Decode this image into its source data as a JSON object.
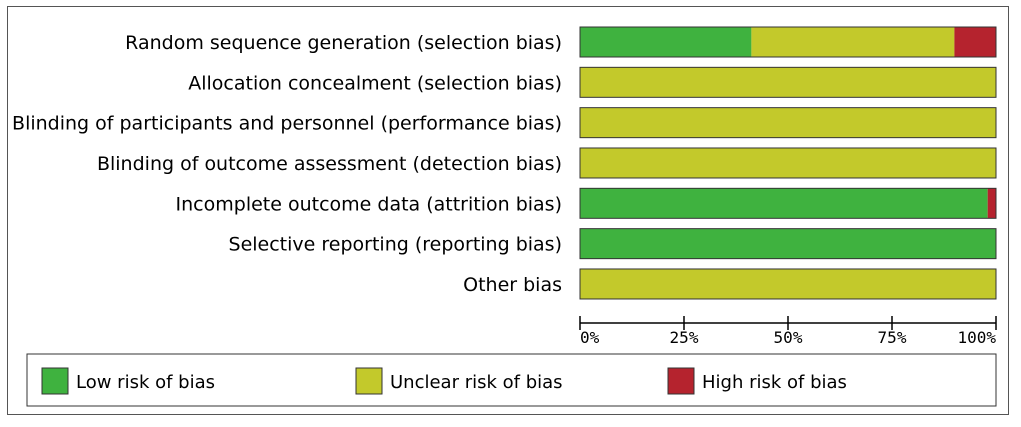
{
  "chart_data": {
    "type": "bar",
    "orientation": "horizontal",
    "stacked": true,
    "percent": true,
    "categories": [
      "Random sequence generation (selection bias)",
      "Allocation concealment (selection bias)",
      "Blinding of participants and personnel (performance bias)",
      "Blinding of outcome assessment (detection bias)",
      "Incomplete outcome data (attrition bias)",
      "Selective reporting (reporting bias)",
      "Other bias"
    ],
    "series": [
      {
        "name": "Low risk of bias",
        "color": "#3fb23f",
        "values": [
          41.2,
          0,
          0,
          0,
          98,
          100,
          0
        ]
      },
      {
        "name": "Unclear risk of bias",
        "color": "#c3c92b",
        "values": [
          48.8,
          100,
          100,
          100,
          0,
          0,
          100
        ]
      },
      {
        "name": "High risk of bias",
        "color": "#b5232e",
        "values": [
          10,
          0,
          0,
          0,
          2,
          0,
          0
        ]
      }
    ],
    "xlim": [
      0,
      100
    ],
    "xticks": [
      0,
      25,
      50,
      75,
      100
    ],
    "xtick_labels": [
      "0%",
      "25%",
      "50%",
      "75%",
      "100%"
    ],
    "grid": false,
    "legend_position": "bottom"
  }
}
